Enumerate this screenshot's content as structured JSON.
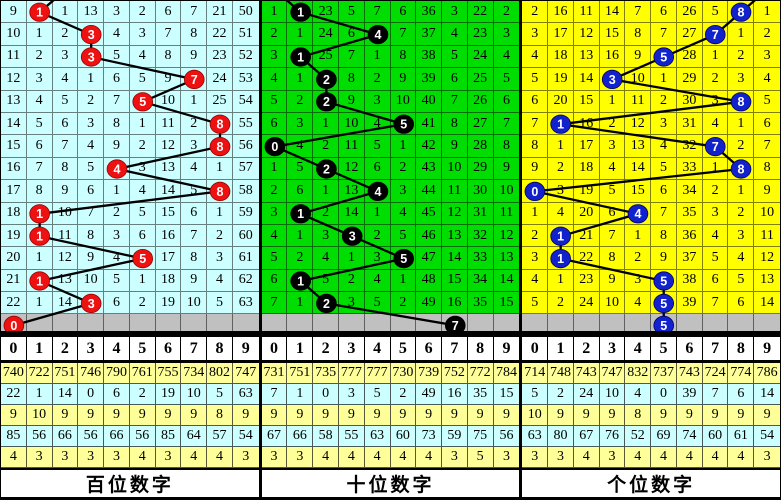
{
  "chart_data": {
    "type": "table",
    "description": "3D lottery trend chart: per-digit miss counts with drawn-digit balls connected by lines; three position panels with statistics rows below",
    "pending_row_bg": "#C0C0C0",
    "stat_row_colors": [
      "#FFFF99",
      "#CCFFFF",
      "#FFFF99",
      "#CCFFFF",
      "#FFFF99"
    ],
    "header_bg": "#FFFFFF",
    "line_color": "#000000",
    "panels": [
      {
        "label": "百位数字",
        "theme": {
          "bg": "#CCFFFF",
          "ball": "#EE1111",
          "ball_stroke": "#990000",
          "ball_text": "#FFFFFF"
        },
        "digits": [
          "0",
          "1",
          "2",
          "3",
          "4",
          "5",
          "6",
          "7",
          "8",
          "9"
        ],
        "prev_ball_col": 2,
        "rows": [
          {
            "cells": [
              "9",
              "1",
              "1",
              "13",
              "3",
              "2",
              "6",
              "7",
              "21",
              "50"
            ],
            "ball_col": 1
          },
          {
            "cells": [
              "10",
              "1",
              "2",
              "3",
              "4",
              "3",
              "7",
              "8",
              "22",
              "51"
            ],
            "ball_col": 3
          },
          {
            "cells": [
              "11",
              "2",
              "3",
              "3",
              "5",
              "4",
              "8",
              "9",
              "23",
              "52"
            ],
            "ball_col": 3
          },
          {
            "cells": [
              "12",
              "3",
              "4",
              "1",
              "6",
              "5",
              "9",
              "7",
              "24",
              "53"
            ],
            "ball_col": 7
          },
          {
            "cells": [
              "13",
              "4",
              "5",
              "2",
              "7",
              "5",
              "10",
              "1",
              "25",
              "54"
            ],
            "ball_col": 5
          },
          {
            "cells": [
              "14",
              "5",
              "6",
              "3",
              "8",
              "1",
              "11",
              "2",
              "8",
              "55"
            ],
            "ball_col": 8
          },
          {
            "cells": [
              "15",
              "6",
              "7",
              "4",
              "9",
              "2",
              "12",
              "3",
              "8",
              "56"
            ],
            "ball_col": 8
          },
          {
            "cells": [
              "16",
              "7",
              "8",
              "5",
              "4",
              "3",
              "13",
              "4",
              "1",
              "57"
            ],
            "ball_col": 4
          },
          {
            "cells": [
              "17",
              "8",
              "9",
              "6",
              "1",
              "4",
              "14",
              "5",
              "8",
              "58"
            ],
            "ball_col": 8
          },
          {
            "cells": [
              "18",
              "1",
              "10",
              "7",
              "2",
              "5",
              "15",
              "6",
              "1",
              "59"
            ],
            "ball_col": 1
          },
          {
            "cells": [
              "19",
              "1",
              "11",
              "8",
              "3",
              "6",
              "16",
              "7",
              "2",
              "60"
            ],
            "ball_col": 1
          },
          {
            "cells": [
              "20",
              "1",
              "12",
              "9",
              "4",
              "5",
              "17",
              "8",
              "3",
              "61"
            ],
            "ball_col": 5
          },
          {
            "cells": [
              "21",
              "1",
              "13",
              "10",
              "5",
              "1",
              "18",
              "9",
              "4",
              "62"
            ],
            "ball_col": 1
          },
          {
            "cells": [
              "22",
              "1",
              "14",
              "3",
              "6",
              "2",
              "19",
              "10",
              "5",
              "63"
            ],
            "ball_col": 3
          }
        ],
        "pending_ball_col": 0,
        "drawn_sequence": [
          "1",
          "3",
          "3",
          "7",
          "5",
          "8",
          "8",
          "4",
          "8",
          "1",
          "1",
          "5",
          "1",
          "3",
          "0"
        ],
        "stats_rows": [
          [
            "740",
            "722",
            "751",
            "746",
            "790",
            "761",
            "755",
            "734",
            "802",
            "747"
          ],
          [
            "22",
            "1",
            "14",
            "0",
            "6",
            "2",
            "19",
            "10",
            "5",
            "63"
          ],
          [
            "9",
            "10",
            "9",
            "9",
            "9",
            "9",
            "9",
            "9",
            "8",
            "9"
          ],
          [
            "85",
            "56",
            "66",
            "56",
            "66",
            "56",
            "85",
            "64",
            "57",
            "54"
          ],
          [
            "4",
            "3",
            "3",
            "3",
            "3",
            "4",
            "3",
            "4",
            "4",
            "3"
          ]
        ]
      },
      {
        "label": "十位数字",
        "theme": {
          "bg": "#00DD00",
          "ball": "#000000",
          "ball_stroke": "#000000",
          "ball_text": "#FFFFFF"
        },
        "digits": [
          "0",
          "1",
          "2",
          "3",
          "4",
          "5",
          "6",
          "7",
          "8",
          "9"
        ],
        "prev_ball_col": 0,
        "rows": [
          {
            "cells": [
              "1",
              "1",
              "23",
              "5",
              "7",
              "6",
              "36",
              "3",
              "22",
              "2"
            ],
            "ball_col": 1
          },
          {
            "cells": [
              "2",
              "1",
              "24",
              "6",
              "4",
              "7",
              "37",
              "4",
              "23",
              "3"
            ],
            "ball_col": 4
          },
          {
            "cells": [
              "3",
              "1",
              "25",
              "7",
              "1",
              "8",
              "38",
              "5",
              "24",
              "4"
            ],
            "ball_col": 1
          },
          {
            "cells": [
              "4",
              "1",
              "2",
              "8",
              "2",
              "9",
              "39",
              "6",
              "25",
              "5"
            ],
            "ball_col": 2
          },
          {
            "cells": [
              "5",
              "2",
              "2",
              "9",
              "3",
              "10",
              "40",
              "7",
              "26",
              "6"
            ],
            "ball_col": 2
          },
          {
            "cells": [
              "6",
              "3",
              "1",
              "10",
              "4",
              "5",
              "41",
              "8",
              "27",
              "7"
            ],
            "ball_col": 5
          },
          {
            "cells": [
              "0",
              "4",
              "2",
              "11",
              "5",
              "1",
              "42",
              "9",
              "28",
              "8"
            ],
            "ball_col": 0
          },
          {
            "cells": [
              "1",
              "5",
              "2",
              "12",
              "6",
              "2",
              "43",
              "10",
              "29",
              "9"
            ],
            "ball_col": 2
          },
          {
            "cells": [
              "2",
              "6",
              "1",
              "13",
              "4",
              "3",
              "44",
              "11",
              "30",
              "10"
            ],
            "ball_col": 4
          },
          {
            "cells": [
              "3",
              "1",
              "2",
              "14",
              "1",
              "4",
              "45",
              "12",
              "31",
              "11"
            ],
            "ball_col": 1
          },
          {
            "cells": [
              "4",
              "1",
              "3",
              "3",
              "2",
              "5",
              "46",
              "13",
              "32",
              "12"
            ],
            "ball_col": 3
          },
          {
            "cells": [
              "5",
              "2",
              "4",
              "1",
              "3",
              "5",
              "47",
              "14",
              "33",
              "13"
            ],
            "ball_col": 5
          },
          {
            "cells": [
              "6",
              "1",
              "5",
              "2",
              "4",
              "1",
              "48",
              "15",
              "34",
              "14"
            ],
            "ball_col": 1
          },
          {
            "cells": [
              "7",
              "1",
              "2",
              "3",
              "5",
              "2",
              "49",
              "16",
              "35",
              "15"
            ],
            "ball_col": 2
          }
        ],
        "pending_ball_col": 7,
        "drawn_sequence": [
          "1",
          "4",
          "1",
          "2",
          "2",
          "5",
          "0",
          "2",
          "4",
          "1",
          "3",
          "5",
          "1",
          "2",
          "7"
        ],
        "stats_rows": [
          [
            "731",
            "751",
            "735",
            "777",
            "777",
            "730",
            "739",
            "752",
            "772",
            "784"
          ],
          [
            "7",
            "1",
            "0",
            "3",
            "5",
            "2",
            "49",
            "16",
            "35",
            "15"
          ],
          [
            "9",
            "9",
            "9",
            "9",
            "9",
            "9",
            "9",
            "9",
            "9",
            "9"
          ],
          [
            "67",
            "66",
            "58",
            "55",
            "63",
            "60",
            "73",
            "59",
            "75",
            "56"
          ],
          [
            "3",
            "3",
            "4",
            "4",
            "4",
            "4",
            "4",
            "3",
            "5",
            "3"
          ]
        ]
      },
      {
        "label": "个位数字",
        "theme": {
          "bg": "#FFFF00",
          "ball": "#1122CC",
          "ball_stroke": "#000066",
          "ball_text": "#FFFFFF"
        },
        "digits": [
          "0",
          "1",
          "2",
          "3",
          "4",
          "5",
          "6",
          "7",
          "8",
          "9"
        ],
        "prev_ball_col": 9,
        "rows": [
          {
            "cells": [
              "2",
              "16",
              "11",
              "14",
              "7",
              "6",
              "26",
              "5",
              "8",
              "1"
            ],
            "ball_col": 8
          },
          {
            "cells": [
              "3",
              "17",
              "12",
              "15",
              "8",
              "7",
              "27",
              "7",
              "1",
              "2"
            ],
            "ball_col": 7
          },
          {
            "cells": [
              "4",
              "18",
              "13",
              "16",
              "9",
              "5",
              "28",
              "1",
              "2",
              "3"
            ],
            "ball_col": 5
          },
          {
            "cells": [
              "5",
              "19",
              "14",
              "3",
              "10",
              "1",
              "29",
              "2",
              "3",
              "4"
            ],
            "ball_col": 3
          },
          {
            "cells": [
              "6",
              "20",
              "15",
              "1",
              "11",
              "2",
              "30",
              "3",
              "8",
              "5"
            ],
            "ball_col": 8
          },
          {
            "cells": [
              "7",
              "1",
              "16",
              "2",
              "12",
              "3",
              "31",
              "4",
              "1",
              "6"
            ],
            "ball_col": 1
          },
          {
            "cells": [
              "8",
              "1",
              "17",
              "3",
              "13",
              "4",
              "32",
              "7",
              "2",
              "7"
            ],
            "ball_col": 7
          },
          {
            "cells": [
              "9",
              "2",
              "18",
              "4",
              "14",
              "5",
              "33",
              "1",
              "8",
              "8"
            ],
            "ball_col": 8
          },
          {
            "cells": [
              "0",
              "3",
              "19",
              "5",
              "15",
              "6",
              "34",
              "2",
              "1",
              "9"
            ],
            "ball_col": 0
          },
          {
            "cells": [
              "1",
              "4",
              "20",
              "6",
              "4",
              "7",
              "35",
              "3",
              "2",
              "10"
            ],
            "ball_col": 4
          },
          {
            "cells": [
              "2",
              "1",
              "21",
              "7",
              "1",
              "8",
              "36",
              "4",
              "3",
              "11"
            ],
            "ball_col": 1
          },
          {
            "cells": [
              "3",
              "1",
              "22",
              "8",
              "2",
              "9",
              "37",
              "5",
              "4",
              "12"
            ],
            "ball_col": 1
          },
          {
            "cells": [
              "4",
              "1",
              "23",
              "9",
              "3",
              "5",
              "38",
              "6",
              "5",
              "13"
            ],
            "ball_col": 5
          },
          {
            "cells": [
              "5",
              "2",
              "24",
              "10",
              "4",
              "5",
              "39",
              "7",
              "6",
              "14"
            ],
            "ball_col": 5
          }
        ],
        "pending_ball_col": 5,
        "drawn_sequence": [
          "8",
          "7",
          "5",
          "3",
          "8",
          "1",
          "7",
          "8",
          "0",
          "4",
          "1",
          "1",
          "5",
          "5",
          "5"
        ],
        "stats_rows": [
          [
            "714",
            "748",
            "743",
            "747",
            "832",
            "737",
            "743",
            "724",
            "774",
            "786"
          ],
          [
            "5",
            "2",
            "24",
            "10",
            "4",
            "0",
            "39",
            "7",
            "6",
            "14"
          ],
          [
            "10",
            "9",
            "9",
            "9",
            "8",
            "9",
            "9",
            "9",
            "9",
            "9"
          ],
          [
            "63",
            "80",
            "67",
            "76",
            "52",
            "69",
            "74",
            "60",
            "61",
            "54"
          ],
          [
            "3",
            "3",
            "4",
            "3",
            "4",
            "4",
            "4",
            "4",
            "4",
            "3"
          ]
        ]
      }
    ]
  }
}
